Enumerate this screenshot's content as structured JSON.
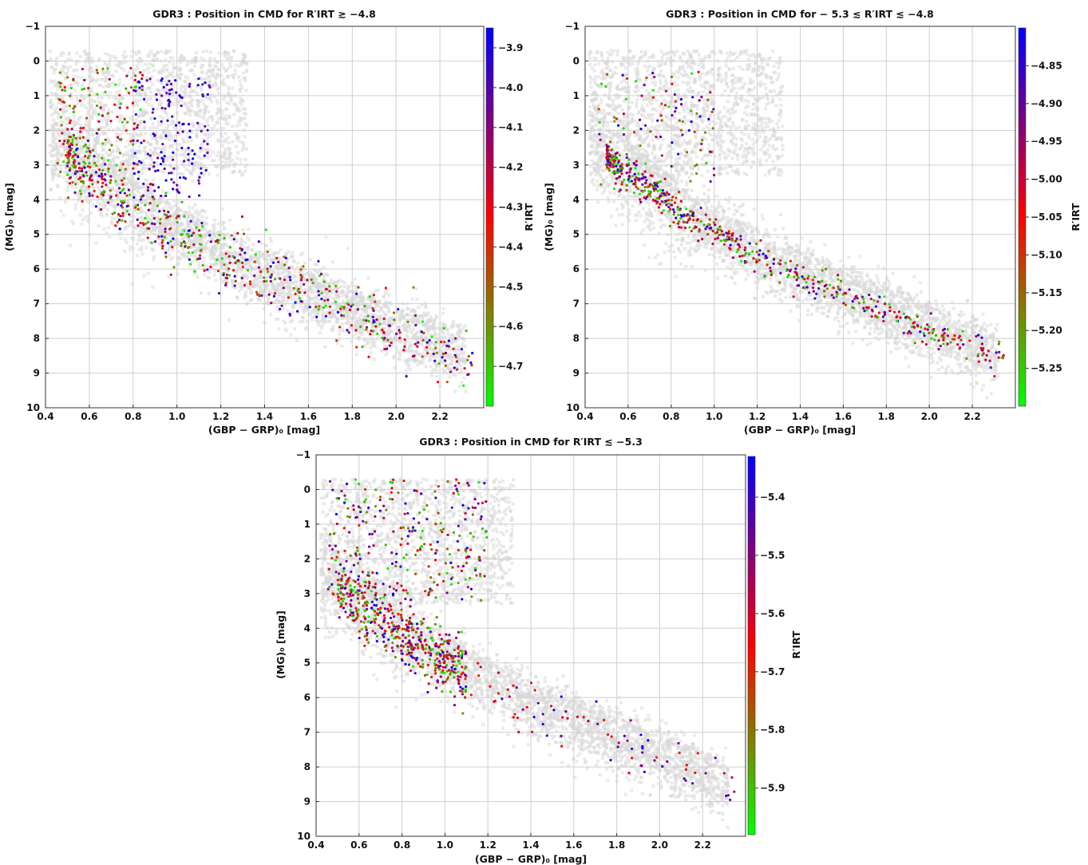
{
  "chart_data": [
    {
      "type": "scatter",
      "title": "GDR3 :  Position in CMD for R′IRT ≳ −4.8",
      "xlabel": "(GBP − GRP)₀ [mag]",
      "ylabel": "(MG)₀ [mag]",
      "xlim": [
        0.4,
        2.4
      ],
      "ylim": [
        10,
        -1
      ],
      "y_inverted": true,
      "x_ticks": [
        "0.4",
        "0.6",
        "0.8",
        "1.0",
        "1.2",
        "1.4",
        "1.6",
        "1.8",
        "2.0",
        "2.2"
      ],
      "y_ticks": [
        "−1",
        "0",
        "1",
        "2",
        "3",
        "4",
        "5",
        "6",
        "7",
        "8",
        "9",
        "10"
      ],
      "grid": true,
      "background": "grey density of Gaia DR3 stars (main sequence + giant branch)",
      "colorbar": {
        "label": "R′IRT",
        "range": [
          -4.8,
          -3.85
        ],
        "ticks": [
          "−3.9",
          "−4.0",
          "−4.1",
          "−4.2",
          "−4.3",
          "−4.4",
          "−4.5",
          "−4.6",
          "−4.7"
        ],
        "colors": [
          "#00ff00",
          "#ff0000",
          "#0000ff"
        ]
      },
      "points_summary": "~1000 coloured points following main sequence (0.4–2.35 mag color) with a clump of blue (high R′IRT) points at color 0.85–1.1, MG 0.5–3.5"
    },
    {
      "type": "scatter",
      "title": "GDR3 :  Position in CMD for  − 5.3 ≲ R′IRT ≲ −4.8",
      "xlabel": "(GBP − GRP)₀ [mag]",
      "ylabel": "(MG)₀ [mag]",
      "xlim": [
        0.4,
        2.4
      ],
      "ylim": [
        10,
        -1
      ],
      "y_inverted": true,
      "x_ticks": [
        "0.4",
        "0.6",
        "0.8",
        "1.0",
        "1.2",
        "1.4",
        "1.6",
        "1.8",
        "2.0",
        "2.2"
      ],
      "y_ticks": [
        "−1",
        "0",
        "1",
        "2",
        "3",
        "4",
        "5",
        "6",
        "7",
        "8",
        "9",
        "10"
      ],
      "grid": true,
      "colorbar": {
        "label": "R′IRT",
        "range": [
          -5.3,
          -4.8
        ],
        "ticks": [
          "−4.85",
          "−4.90",
          "−4.95",
          "−5.00",
          "−5.05",
          "−5.10",
          "−5.15",
          "−5.20",
          "−5.25"
        ],
        "colors": [
          "#00ff00",
          "#ff0000",
          "#0000ff"
        ]
      },
      "points_summary": "~800 points tightly along the main sequence, color 0.45–2.35"
    },
    {
      "type": "scatter",
      "title": "GDR3 :  Position in CMD for R′IRT ≲ −5.3",
      "xlabel": "(GBP − GRP)₀ [mag]",
      "ylabel": "(MG)₀ [mag]",
      "xlim": [
        0.4,
        2.4
      ],
      "ylim": [
        10,
        -1
      ],
      "y_inverted": true,
      "x_ticks": [
        "0.4",
        "0.6",
        "0.8",
        "1.0",
        "1.2",
        "1.4",
        "1.6",
        "1.8",
        "2.0",
        "2.2"
      ],
      "y_ticks": [
        "−1",
        "0",
        "1",
        "2",
        "3",
        "4",
        "5",
        "6",
        "7",
        "8",
        "9",
        "10"
      ],
      "grid": true,
      "colorbar": {
        "label": "R′IRT",
        "range": [
          -5.98,
          -5.33
        ],
        "ticks": [
          "−5.4",
          "−5.5",
          "−5.6",
          "−5.7",
          "−5.8",
          "−5.9"
        ],
        "colors": [
          "#00ff00",
          "#ff0000",
          "#0000ff"
        ]
      },
      "points_summary": "~1000 points mostly at color 0.45–1.2, MG 0–6, plus sparse tail to color 2.35"
    }
  ]
}
